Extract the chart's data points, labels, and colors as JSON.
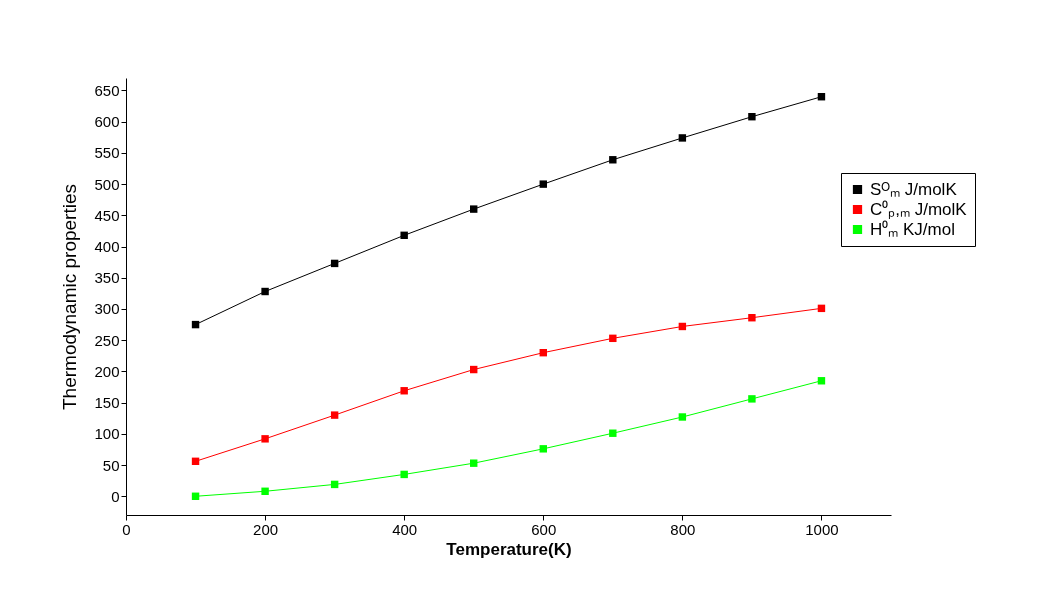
{
  "chart_data": {
    "type": "line",
    "xlabel": "Temperature(K)",
    "ylabel": "Thermodynamic properties",
    "x": [
      100,
      200,
      300,
      400,
      500,
      600,
      700,
      800,
      900,
      1000
    ],
    "series": [
      {
        "name": "Sᴼₘ J/molK",
        "color": "#000000",
        "values": [
          275,
          328,
          373,
          418,
          460,
          500,
          539,
          574,
          608,
          640
        ]
      },
      {
        "name": "C⁰ₚ,ₘ J/molK",
        "color": "#ff0000",
        "values": [
          56,
          92,
          130,
          169,
          203,
          230,
          253,
          272,
          286,
          301
        ]
      },
      {
        "name": "H⁰ₘ KJ/mol",
        "color": "#00ff00",
        "values": [
          0,
          8,
          19,
          35,
          53,
          76,
          101,
          127,
          156,
          185
        ]
      }
    ],
    "xlim": [
      0,
      1100
    ],
    "xticks": [
      0,
      200,
      400,
      600,
      800,
      1000
    ],
    "ylim": [
      -30,
      670
    ],
    "yticks": [
      0,
      50,
      100,
      150,
      200,
      250,
      300,
      350,
      400,
      450,
      500,
      550,
      600,
      650
    ],
    "grid": false,
    "legend": "top right",
    "marker": "square",
    "line_style": "solid"
  }
}
